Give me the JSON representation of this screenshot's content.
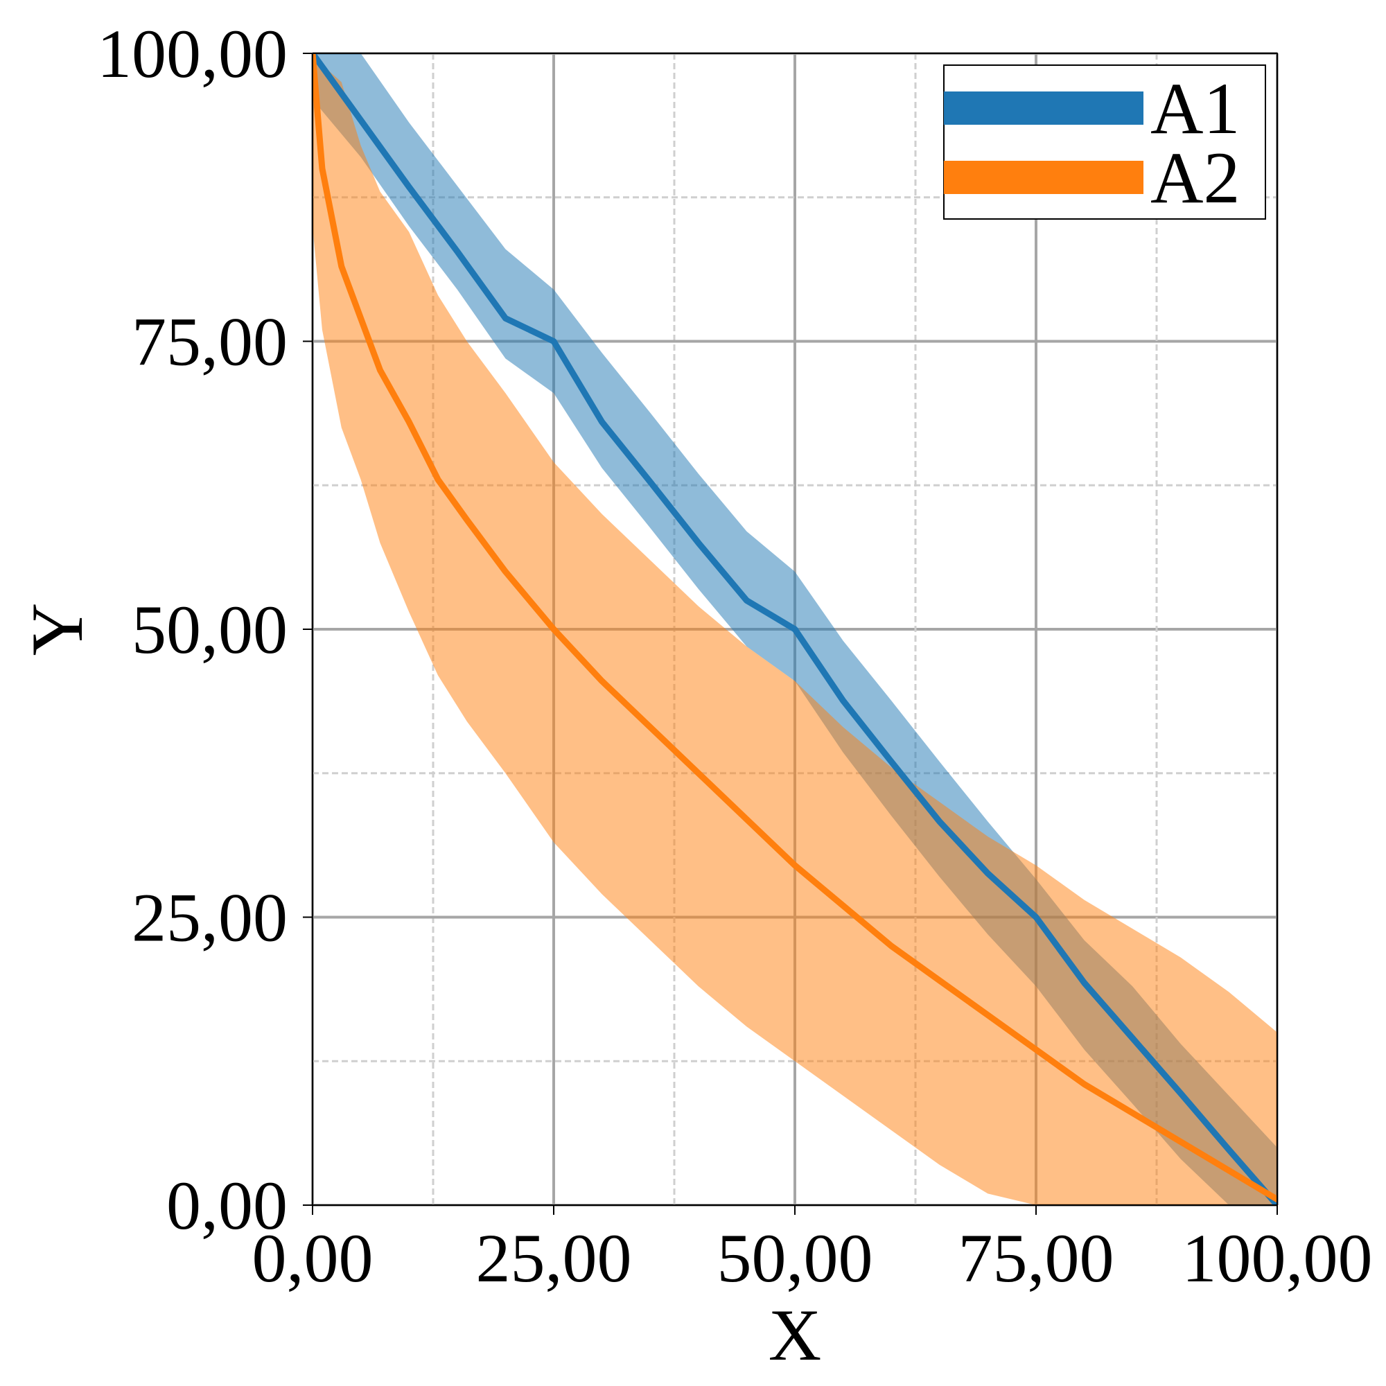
{
  "chart_data": {
    "type": "line",
    "title": "",
    "xlabel": "X",
    "ylabel": "Y",
    "xlim": [
      0,
      100
    ],
    "ylim": [
      0,
      100
    ],
    "xticks": [
      "0,00",
      "25,00",
      "50,00",
      "75,00",
      "100,00"
    ],
    "yticks": [
      "0,00",
      "25,00",
      "50,00",
      "75,00",
      "100,00"
    ],
    "grid": "major solid, minor dashed",
    "legend": "top-right",
    "series": [
      {
        "name": "A1",
        "color": "#1f77b4",
        "x": [
          0,
          5,
          10,
          15,
          20,
          25,
          30,
          35,
          40,
          45,
          50,
          55,
          60,
          65,
          70,
          75,
          80,
          85,
          90,
          95,
          100
        ],
        "y": [
          100,
          94.2,
          88.4,
          82.8,
          77.0,
          75.0,
          68.0,
          62.8,
          57.5,
          52.5,
          50.0,
          43.8,
          38.5,
          33.3,
          28.8,
          25.0,
          19.3,
          14.5,
          9.7,
          4.8,
          0
        ],
        "band_upper": [
          100,
          100,
          94.0,
          88.5,
          83.0,
          79.5,
          74.0,
          68.8,
          63.5,
          58.5,
          55.0,
          49.0,
          43.8,
          38.5,
          33.3,
          28.3,
          23.0,
          19.0,
          14.0,
          9.5,
          5.0
        ],
        "band_lower": [
          96.0,
          91.0,
          85.0,
          79.5,
          73.5,
          70.5,
          64.0,
          58.8,
          53.5,
          48.5,
          45.5,
          39.3,
          33.8,
          28.5,
          23.5,
          19.0,
          13.5,
          8.8,
          4.0,
          0,
          0
        ]
      },
      {
        "name": "A2",
        "color": "#ff7f0e",
        "x": [
          0,
          1,
          3,
          5,
          7,
          10,
          13,
          16,
          20,
          25,
          30,
          35,
          40,
          45,
          50,
          55,
          60,
          65,
          70,
          75,
          80,
          85,
          90,
          95,
          100
        ],
        "y": [
          100,
          90.0,
          81.5,
          77.0,
          72.5,
          68.0,
          63.0,
          59.5,
          55.0,
          50.0,
          45.5,
          41.5,
          37.5,
          33.5,
          29.5,
          26.0,
          22.5,
          19.5,
          16.5,
          13.5,
          10.5,
          8.0,
          5.5,
          3.0,
          0.5
        ],
        "band_upper": [
          100,
          99.0,
          97.5,
          92.0,
          88.0,
          84.5,
          79.0,
          75.0,
          70.5,
          64.5,
          60.0,
          56.0,
          52.0,
          48.5,
          45.5,
          41.5,
          38.0,
          35.0,
          32.0,
          29.5,
          26.5,
          24.0,
          21.5,
          18.5,
          15.0
        ],
        "band_lower": [
          85.0,
          76.0,
          67.5,
          63.0,
          57.5,
          51.5,
          46.0,
          42.0,
          37.5,
          31.5,
          27.0,
          23.0,
          19.0,
          15.5,
          12.5,
          9.5,
          6.5,
          3.5,
          1.0,
          0,
          0,
          0,
          0,
          0,
          0
        ]
      }
    ]
  }
}
